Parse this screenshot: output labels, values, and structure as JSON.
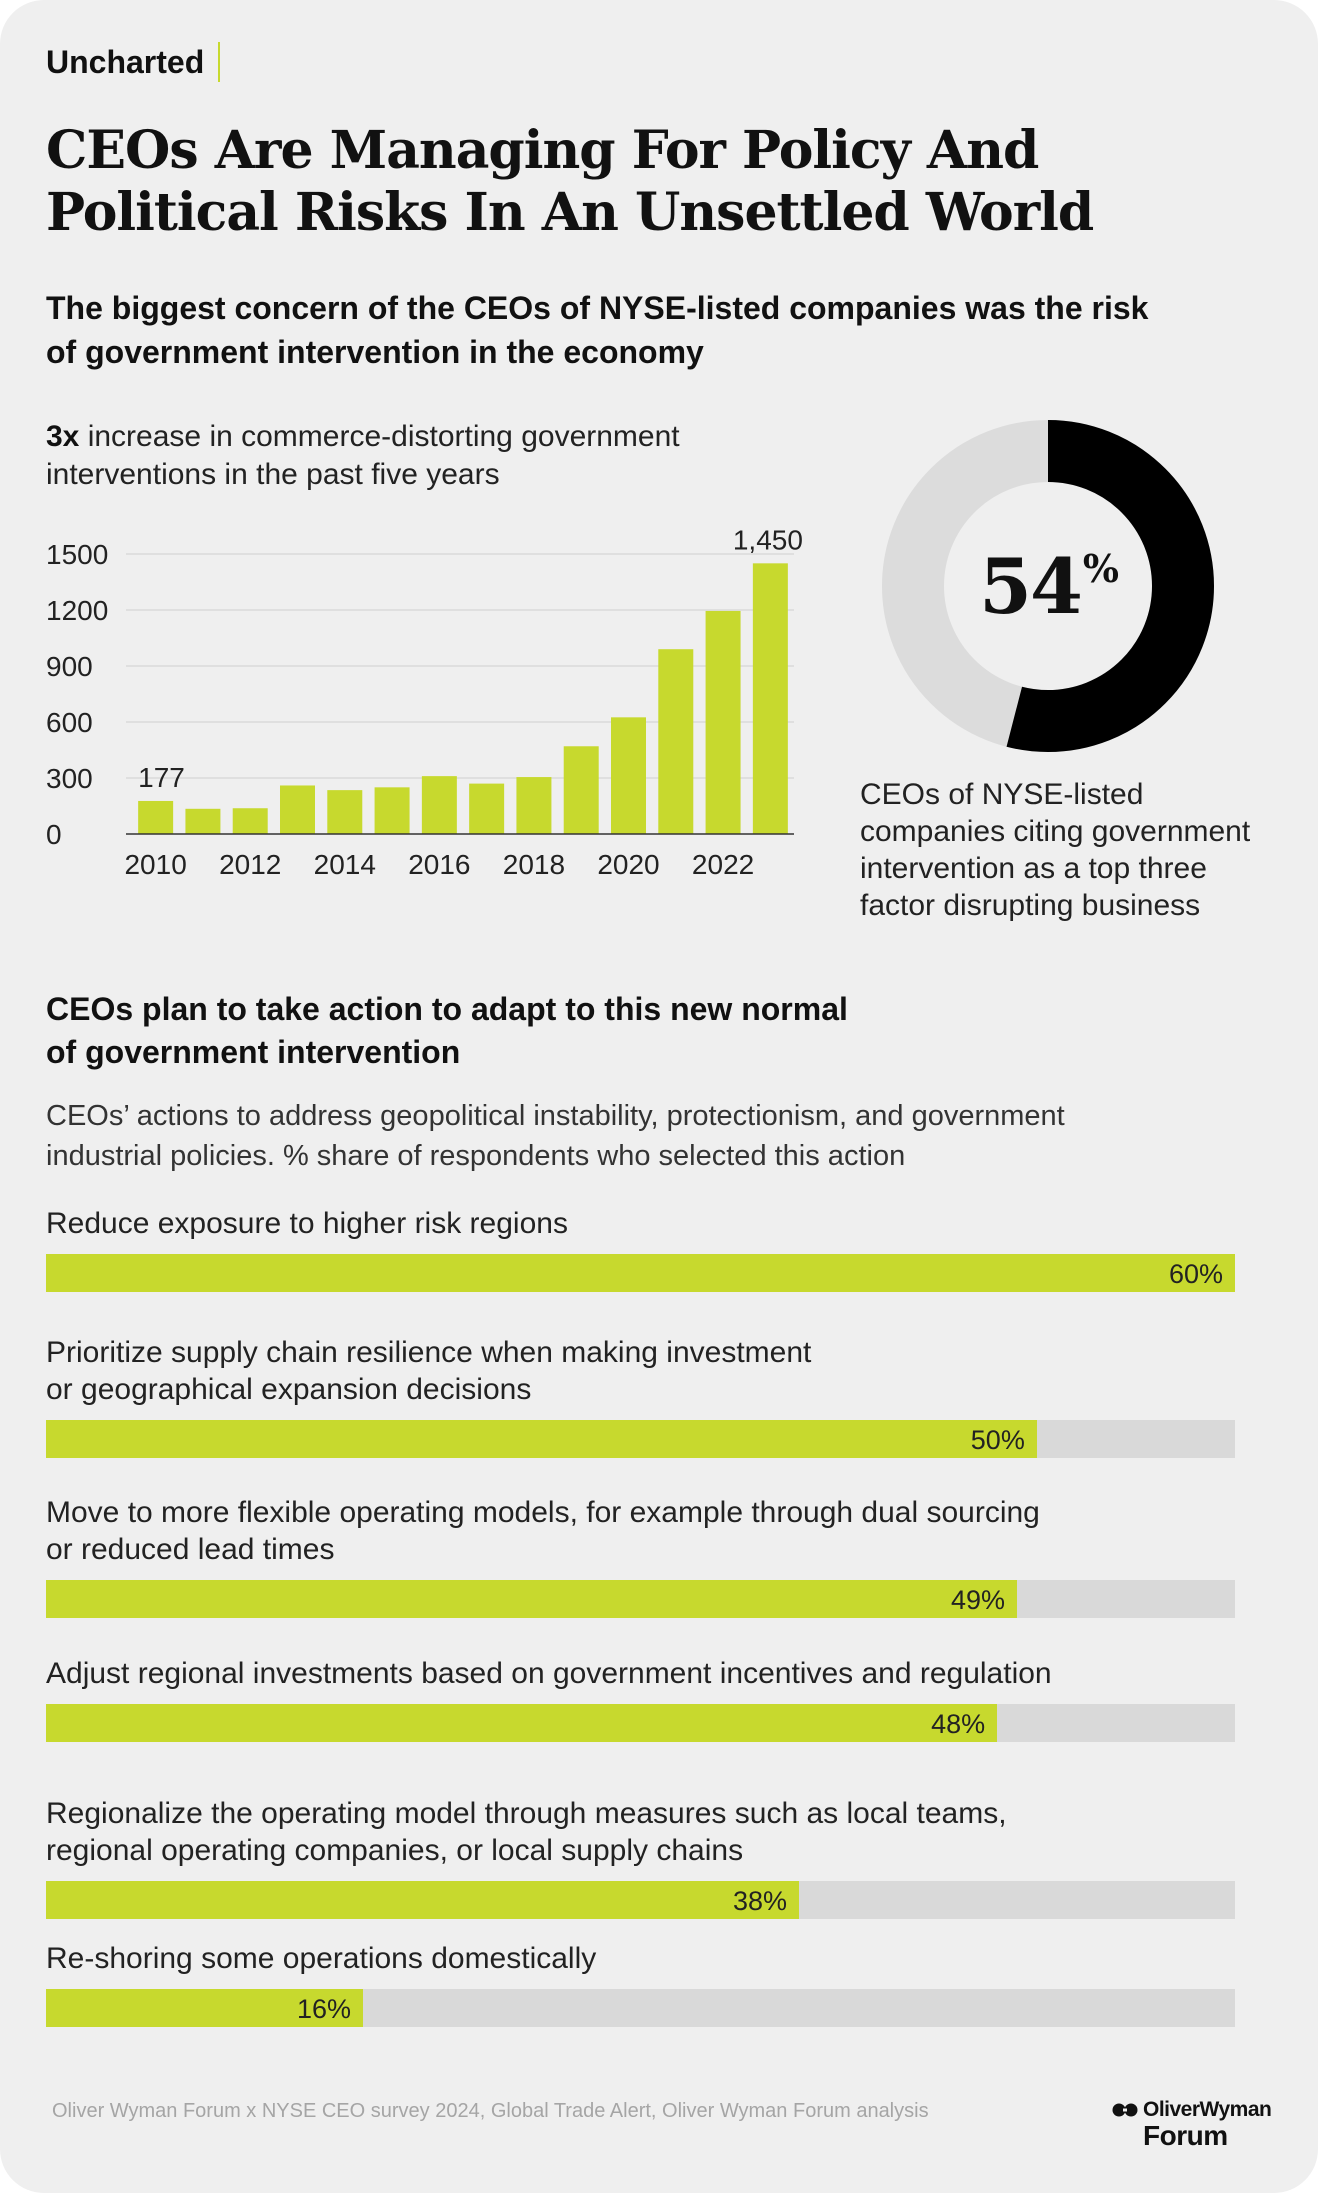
{
  "brand": "Uncharted",
  "title_lines": [
    "CEOs Are Managing For Policy And",
    "Political Risks In An Unsettled World"
  ],
  "subtitle_lines": [
    "The biggest concern of the CEOs of NYSE-listed companies was the risk",
    "of government intervention in the economy"
  ],
  "bar_intro": {
    "bold": "3x",
    "line1_rest": " increase in commerce-distorting government",
    "line2": "interventions in the past five years"
  },
  "colors": {
    "accent": "#c7d92e",
    "track": "#d9d9d9",
    "background": "#efefef",
    "donut_dark": "#000000",
    "donut_light": "#dcdcdc"
  },
  "chart_data": [
    {
      "type": "bar",
      "categories": [
        "2010",
        "2011",
        "2012",
        "2013",
        "2014",
        "2015",
        "2016",
        "2017",
        "2018",
        "2019",
        "2020",
        "2021",
        "2022",
        "2023"
      ],
      "values": [
        177,
        135,
        138,
        260,
        235,
        250,
        310,
        270,
        305,
        470,
        625,
        990,
        1195,
        1450
      ],
      "xtick_labels": [
        "2010",
        "2012",
        "2014",
        "2016",
        "2018",
        "2020",
        "2022"
      ],
      "yticks": [
        0,
        300,
        600,
        900,
        1200,
        1500
      ],
      "ylim": [
        0,
        1500
      ],
      "data_labels": [
        {
          "category": "2010",
          "text": "177"
        },
        {
          "category": "2023",
          "text": "1,450"
        }
      ],
      "grid": true
    },
    {
      "type": "pie",
      "variant": "donut",
      "value": 54,
      "label": "54",
      "unit": "%",
      "caption_lines": [
        "CEOs of NYSE-listed",
        "companies citing government",
        "intervention as a top three",
        "factor disrupting business"
      ]
    },
    {
      "type": "bar",
      "orientation": "horizontal",
      "max": 60,
      "heading_lines": [
        "CEOs plan to take action to adapt to this new normal",
        "of government intervention"
      ],
      "description_lines": [
        "CEOs’ actions to address geopolitical instability, protectionism, and government",
        "industrial policies. % share of respondents who selected this action"
      ],
      "items": [
        {
          "label_lines": [
            "Reduce exposure to higher risk regions"
          ],
          "value": 60,
          "value_label": "60%"
        },
        {
          "label_lines": [
            "Prioritize supply chain resilience when making investment",
            "or geographical expansion decisions"
          ],
          "value": 50,
          "value_label": "50%"
        },
        {
          "label_lines": [
            "Move to more flexible operating models, for example through dual sourcing",
            "or reduced lead times"
          ],
          "value": 49,
          "value_label": "49%"
        },
        {
          "label_lines": [
            "Adjust regional investments based on government incentives and regulation"
          ],
          "value": 48,
          "value_label": "48%"
        },
        {
          "label_lines": [
            "Regionalize the operating model through measures such as local teams,",
            "regional operating companies, or local supply chains"
          ],
          "value": 38,
          "value_label": "38%"
        },
        {
          "label_lines": [
            "Re-shoring some operations domestically"
          ],
          "value": 16,
          "value_label": "16%"
        }
      ]
    }
  ],
  "source": "Oliver Wyman Forum x NYSE CEO survey 2024, Global Trade Alert, Oliver Wyman Forum analysis",
  "logo": {
    "top": "OliverWyman",
    "bottom": "Forum",
    "icon": "oliver-wyman-logo-mark"
  }
}
